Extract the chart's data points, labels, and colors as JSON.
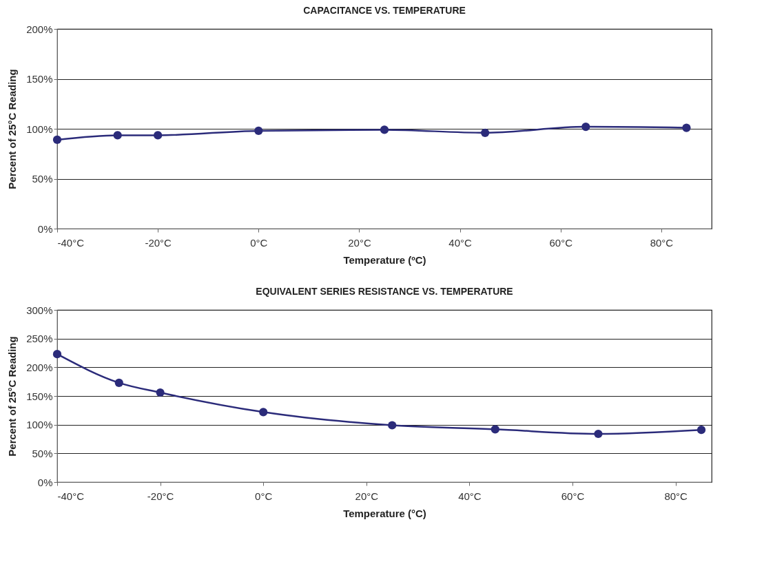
{
  "chart_data": [
    {
      "type": "line",
      "title": "CAPACITANCE VS. TEMPERATURE",
      "xlabel": "Temperature (ºC)",
      "ylabel": "Percent of 25°C Reading",
      "x": [
        -40,
        -28,
        -20,
        0,
        25,
        45,
        65,
        85
      ],
      "series": [
        {
          "color": "#2b2b7a",
          "values": [
            89,
            93.5,
            93.5,
            98,
            99,
            96,
            102,
            101
          ]
        }
      ],
      "xlim": [
        -40,
        90
      ],
      "xticks": [
        {
          "value": -40,
          "label": "-40°C"
        },
        {
          "value": -20,
          "label": "-20°C"
        },
        {
          "value": 0,
          "label": "0°C"
        },
        {
          "value": 20,
          "label": "20°C"
        },
        {
          "value": 40,
          "label": "40°C"
        },
        {
          "value": 60,
          "label": "60°C"
        },
        {
          "value": 80,
          "label": "80°C"
        }
      ],
      "ylim": [
        0,
        200
      ],
      "yticks": [
        {
          "value": 0,
          "label": "0%"
        },
        {
          "value": 50,
          "label": "50%"
        },
        {
          "value": 100,
          "label": "100%"
        },
        {
          "value": 150,
          "label": "150%"
        },
        {
          "value": 200,
          "label": "200%"
        }
      ],
      "grid": "y",
      "marker": "circle",
      "line_style": "solid"
    },
    {
      "type": "line",
      "title": "EQUIVALENT SERIES RESISTANCE VS. TEMPERATURE",
      "xlabel": "Temperature (°C)",
      "ylabel": "Percent of 25°C Reading",
      "x": [
        -40,
        -28,
        -20,
        0,
        25,
        45,
        65,
        85
      ],
      "series": [
        {
          "color": "#2b2b7a",
          "values": [
            223,
            173,
            156,
            122,
            99,
            92,
            84,
            91
          ]
        }
      ],
      "xlim": [
        -40,
        87
      ],
      "xticks": [
        {
          "value": -40,
          "label": "-40°C"
        },
        {
          "value": -20,
          "label": "-20°C"
        },
        {
          "value": 0,
          "label": "0°C"
        },
        {
          "value": 20,
          "label": "20°C"
        },
        {
          "value": 40,
          "label": "40°C"
        },
        {
          "value": 60,
          "label": "60°C"
        },
        {
          "value": 80,
          "label": "80°C"
        }
      ],
      "ylim": [
        0,
        300
      ],
      "yticks": [
        {
          "value": 0,
          "label": "0%"
        },
        {
          "value": 50,
          "label": "50%"
        },
        {
          "value": 100,
          "label": "100%"
        },
        {
          "value": 150,
          "label": "150%"
        },
        {
          "value": 200,
          "label": "200%"
        },
        {
          "value": 250,
          "label": "250%"
        },
        {
          "value": 300,
          "label": "300%"
        }
      ],
      "grid": "y",
      "marker": "circle",
      "line_style": "solid"
    }
  ]
}
